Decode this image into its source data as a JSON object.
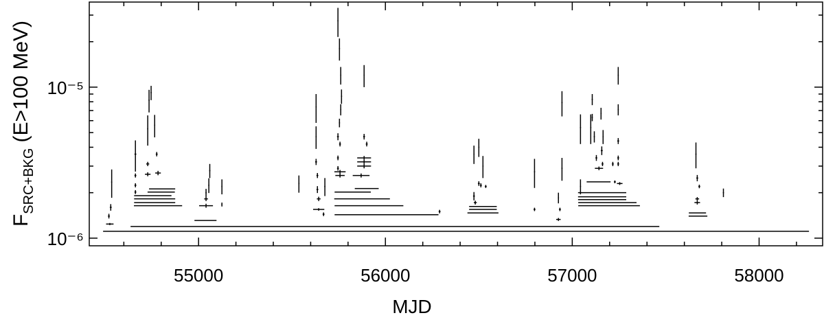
{
  "chart_data": {
    "type": "scatter",
    "xlabel": "MJD",
    "ylabel": {
      "main": "F",
      "sub": "SRC+BKG",
      "rest": "(E>100 MeV)"
    },
    "xlim": [
      54415,
      58340
    ],
    "xticks": [
      55000,
      56000,
      57000,
      58000
    ],
    "xminorticks": [
      54600,
      54800,
      55200,
      55400,
      55600,
      55800,
      56200,
      56400,
      56600,
      56800,
      57200,
      57400,
      57600,
      57800,
      58200
    ],
    "ylim": [
      8.9e-07,
      3.66e-05
    ],
    "log_y": true,
    "yticks": [
      {
        "value": 1e-06,
        "label": "10⁻⁶"
      },
      {
        "value": 1e-05,
        "label": "10⁻⁵"
      }
    ],
    "yminorticks": [
      2e-06,
      3e-06,
      4e-06,
      5e-06,
      6e-06,
      7e-06,
      8e-06,
      9e-06,
      2e-05,
      3e-05
    ],
    "color": "#000000",
    "x": [
      56378,
      56051,
      54525,
      54520,
      54530,
      54535,
      54662,
      54662,
      54662,
      54662,
      54728,
      54728,
      54728,
      54735,
      54746,
      54765,
      54776,
      54783,
      54783,
      54765,
      54765,
      54755,
      54800,
      54805,
      55037,
      55040,
      55040,
      55055,
      55040,
      55060,
      55125,
      55125,
      55537,
      55629,
      55629,
      55629,
      55636,
      55636,
      55643,
      55643,
      55669,
      55676,
      55746,
      55754,
      55761,
      55765,
      55761,
      55754,
      55746,
      55757,
      55746,
      55746,
      55757,
      55757,
      55886,
      55886,
      55900,
      55886,
      55886,
      55886,
      55870,
      55900,
      55825,
      55875,
      55912,
      56006,
      56290,
      56474,
      56500,
      56522,
      56500,
      56511,
      56537,
      56474,
      56481,
      56522,
      56522,
      56522,
      56798,
      56798,
      56926,
      56934,
      56926,
      56945,
      56945,
      57044,
      57044,
      57099,
      57107,
      57107,
      57118,
      57129,
      57154,
      57165,
      57158,
      57162,
      57143,
      57217,
      57228,
      57246,
      57246,
      57246,
      57246,
      57246,
      57254,
      57141,
      57160,
      57160,
      57160,
      57188,
      57197,
      57662,
      57669,
      57680,
      57669,
      57669,
      57670,
      57673,
      57809
    ],
    "xerr": [
      1889,
      1415,
      20,
      5,
      5,
      3,
      5,
      5,
      5,
      5,
      3,
      8,
      15,
      3,
      3,
      3,
      5,
      15,
      129,
      110,
      110,
      100,
      73,
      70,
      59,
      37,
      10,
      3,
      3,
      3,
      3,
      3,
      3,
      3,
      3,
      5,
      5,
      5,
      10,
      30,
      5,
      3,
      3,
      3,
      3,
      3,
      3,
      3,
      5,
      5,
      5,
      5,
      30,
      25,
      3,
      5,
      5,
      37,
      37,
      37,
      45,
      64,
      97,
      149,
      184,
      278,
      5,
      3,
      3,
      3,
      5,
      5,
      5,
      5,
      8,
      74,
      74,
      83,
      3,
      5,
      3,
      5,
      12,
      3,
      3,
      3,
      3,
      3,
      3,
      3,
      3,
      5,
      3,
      3,
      5,
      5,
      22,
      5,
      5,
      3,
      3,
      5,
      5,
      5,
      15,
      64,
      129,
      129,
      129,
      156,
      165,
      3,
      5,
      5,
      10,
      15,
      46,
      50,
      3
    ],
    "values": [
      1.11e-06,
      1.195e-06,
      1.24e-06,
      1.4e-06,
      1.6e-06,
      2.35e-06,
      3.6e-06,
      2.6e-06,
      2.24e-06,
      2.02e-06,
      5.3e-06,
      3.1e-06,
      2.65e-06,
      8.2e-06,
      9.2e-06,
      5.6e-06,
      3.6e-06,
      2.7e-06,
      1.64e-06,
      1.72e-06,
      1.82e-06,
      1.91e-06,
      2.02e-06,
      2.12e-06,
      1.31e-06,
      1.64e-06,
      1.82e-06,
      2.24e-06,
      2e-06,
      2.8e-06,
      2.2e-06,
      1.67e-06,
      2.3e-06,
      7.4e-06,
      4.7e-06,
      3.2e-06,
      2.6e-06,
      2.1e-06,
      1.82e-06,
      1.55e-06,
      1.44e-06,
      2.2e-06,
      2.75e-05,
      1.8e-05,
      1.2e-05,
      8.7e-06,
      7.1e-06,
      5.8e-06,
      4.7e-06,
      4.2e-06,
      3.4e-06,
      2.9e-06,
      2.75e-06,
      2.6e-06,
      1.2e-05,
      4.7e-06,
      4.2e-06,
      3.4e-06,
      3.2e-06,
      3e-06,
      2.6e-06,
      2.13e-06,
      2.02e-06,
      1.82e-06,
      1.64e-06,
      1.43e-06,
      1.5e-06,
      3.6e-06,
      4e-06,
      3e-06,
      2.3e-06,
      2.24e-06,
      2.2e-06,
      1.9e-06,
      1.72e-06,
      1.62e-06,
      1.55e-06,
      1.47e-06,
      2.75e-06,
      1.55e-06,
      1.85e-06,
      1.55e-06,
      1.33e-06,
      2.9e-06,
      7.9e-06,
      2.2e-06,
      5.4e-06,
      5.4e-06,
      8.3e-06,
      6.3e-06,
      4.7e-06,
      3.4e-06,
      6.7e-06,
      4.7e-06,
      3.8e-06,
      3.1e-06,
      2.9e-06,
      3.1e-06,
      2.36e-06,
      1.2e-05,
      7.1e-06,
      4.4e-06,
      3.4e-06,
      3.1e-06,
      2.3e-06,
      2.36e-06,
      2e-06,
      1.88e-06,
      1.8e-06,
      1.72e-06,
      1.64e-06,
      3.6e-06,
      2.5e-06,
      2.2e-06,
      1.82e-06,
      1.72e-06,
      1.47e-06,
      1.4e-06,
      2e-06
    ],
    "yerr": [
      0,
      0,
      2e-08,
      5e-08,
      8e-08,
      5e-07,
      8.4e-07,
      8e-08,
      7e-08,
      6e-08,
      1.2e-06,
      1e-07,
      8e-08,
      1.4e-06,
      1e-06,
      9.5e-07,
      1.2e-07,
      9e-08,
      0,
      0,
      0,
      0,
      0,
      0,
      0,
      5e-08,
      6e-08,
      2.5e-07,
      1.2e-07,
      3e-07,
      2.5e-07,
      5e-08,
      3e-07,
      1.6e-06,
      8e-07,
      1.5e-07,
      1e-07,
      1.1e-07,
      6e-08,
      3e-08,
      4e-08,
      3e-07,
      6e-06,
      3e-06,
      1.6e-06,
      9.5e-07,
      6e-07,
      3.8e-07,
      2.5e-07,
      1.5e-07,
      1.2e-07,
      1e-07,
      8e-08,
      8e-08,
      2e-06,
      2e-07,
      1.5e-07,
      1e-07,
      1e-07,
      1e-07,
      8e-08,
      0,
      0,
      0,
      0,
      0,
      4e-08,
      5e-07,
      5.5e-07,
      5e-07,
      8e-08,
      7e-08,
      5e-08,
      1.2e-07,
      5e-08,
      0,
      0,
      0,
      6e-07,
      4e-08,
      1.5e-07,
      4e-08,
      3e-08,
      5e-07,
      1.5e-06,
      2.5e-07,
      1.2e-06,
      1.2e-06,
      7e-07,
      3.5e-07,
      4e-07,
      1.5e-07,
      6e-07,
      5e-07,
      2.5e-07,
      1e-07,
      8e-08,
      1e-07,
      5e-08,
      1.6e-06,
      6e-07,
      2e-07,
      1.2e-07,
      1e-07,
      5e-08,
      0,
      0,
      0,
      0,
      0,
      0,
      7e-07,
      1.2e-07,
      6e-08,
      5e-08,
      5e-08,
      0,
      0,
      1.3e-07
    ]
  }
}
